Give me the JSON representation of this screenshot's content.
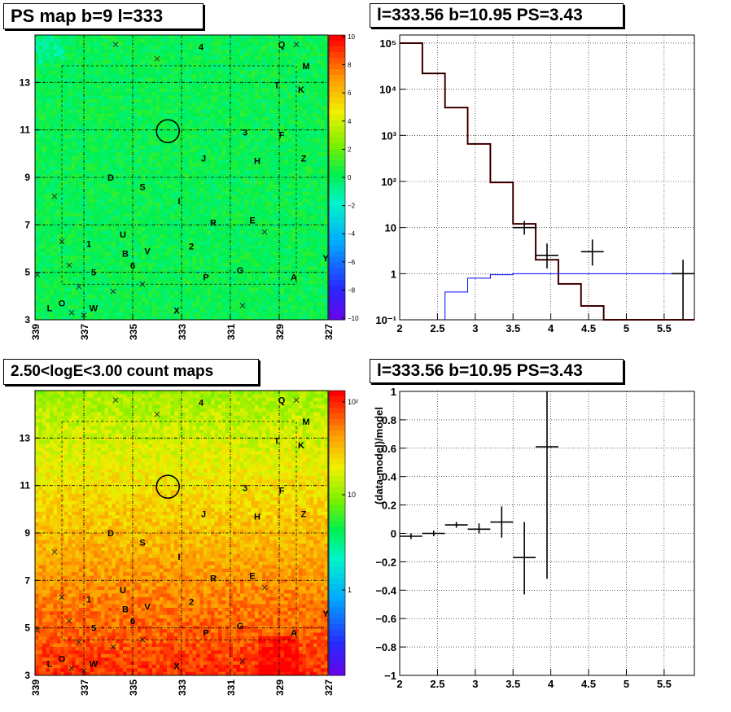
{
  "panels": {
    "ps_map": {
      "title": "PS map b=9 l=333"
    },
    "spectrum": {
      "title": "l=333.56 b=10.95 PS=3.43"
    },
    "count_map": {
      "title": "2.50<logE<3.00 count maps"
    },
    "residual": {
      "title": "l=333.56 b=10.95 PS=3.43"
    }
  },
  "map_axes": {
    "x_ticks": [
      "339",
      "337",
      "335",
      "333",
      "331",
      "329",
      "327"
    ],
    "y_ticks": [
      "5",
      "7",
      "9",
      "11",
      "13"
    ],
    "y_origin_label": "3",
    "ps_colorbar_ticks": [
      "10",
      "8",
      "6",
      "4",
      "2",
      "0",
      "−2",
      "−4",
      "−6",
      "−8",
      "−10"
    ],
    "count_colorbar_ticks": [
      "10²",
      "10",
      "1"
    ]
  },
  "source_labels": [
    {
      "t": "4",
      "l": 332.2,
      "b": 14.5
    },
    {
      "t": "Q",
      "l": 328.9,
      "b": 14.6
    },
    {
      "t": "M",
      "l": 327.9,
      "b": 13.7
    },
    {
      "t": "T",
      "l": 329.1,
      "b": 12.9
    },
    {
      "t": "K",
      "l": 328.1,
      "b": 12.7
    },
    {
      "t": "3",
      "l": 330.4,
      "b": 10.9
    },
    {
      "t": "F",
      "l": 328.9,
      "b": 10.8
    },
    {
      "t": "J",
      "l": 332.1,
      "b": 9.8
    },
    {
      "t": "H",
      "l": 329.9,
      "b": 9.7
    },
    {
      "t": "Z",
      "l": 328.0,
      "b": 9.8
    },
    {
      "t": "D",
      "l": 335.9,
      "b": 9.0
    },
    {
      "t": "S",
      "l": 334.6,
      "b": 8.6
    },
    {
      "t": "I",
      "l": 333.1,
      "b": 8.0
    },
    {
      "t": "R",
      "l": 331.7,
      "b": 7.1
    },
    {
      "t": "E",
      "l": 330.1,
      "b": 7.2
    },
    {
      "t": "U",
      "l": 335.4,
      "b": 6.6
    },
    {
      "t": "1",
      "l": 336.8,
      "b": 6.2
    },
    {
      "t": "2",
      "l": 332.6,
      "b": 6.1
    },
    {
      "t": "B",
      "l": 335.3,
      "b": 5.8
    },
    {
      "t": "V",
      "l": 334.4,
      "b": 5.9
    },
    {
      "t": "6",
      "l": 335.0,
      "b": 5.3
    },
    {
      "t": "5",
      "l": 336.6,
      "b": 5.0
    },
    {
      "t": "G",
      "l": 330.6,
      "b": 5.1
    },
    {
      "t": "P",
      "l": 332.0,
      "b": 4.8
    },
    {
      "t": "A",
      "l": 328.4,
      "b": 4.8
    },
    {
      "t": "Y",
      "l": 327.1,
      "b": 5.6
    },
    {
      "t": "L",
      "l": 338.4,
      "b": 3.5
    },
    {
      "t": "O",
      "l": 337.9,
      "b": 3.7
    },
    {
      "t": "W",
      "l": 336.6,
      "b": 3.5
    },
    {
      "t": "X",
      "l": 333.2,
      "b": 3.4
    }
  ],
  "cross_markers": [
    {
      "l": 335.7,
      "b": 14.6
    },
    {
      "l": 334.0,
      "b": 14.0
    },
    {
      "l": 328.3,
      "b": 14.6
    },
    {
      "l": 338.2,
      "b": 8.2
    },
    {
      "l": 337.9,
      "b": 6.3
    },
    {
      "l": 337.6,
      "b": 5.3
    },
    {
      "l": 337.2,
      "b": 4.4
    },
    {
      "l": 335.8,
      "b": 4.2
    },
    {
      "l": 334.6,
      "b": 4.5
    },
    {
      "l": 329.6,
      "b": 6.7
    },
    {
      "l": 330.5,
      "b": 3.6
    },
    {
      "l": 337.5,
      "b": 3.3
    },
    {
      "l": 337.0,
      "b": 3.2
    },
    {
      "l": 338.9,
      "b": 4.9
    }
  ],
  "circle_marker": {
    "l": 333.56,
    "b": 10.95
  },
  "chart_data": [
    {
      "type": "heatmap",
      "title": "PS map b=9 l=333",
      "xlim": [
        339,
        327
      ],
      "ylim": [
        3,
        15
      ],
      "zlim": [
        -10,
        10
      ],
      "colorbar_ticks": [
        -10,
        -8,
        -6,
        -4,
        -2,
        0,
        2,
        4,
        6,
        8,
        10
      ],
      "dominant_value": 0,
      "grid": true
    },
    {
      "type": "line",
      "title": "l=333.56 b=10.95 PS=3.43",
      "y_scale": "log",
      "xlim": [
        2,
        5.9
      ],
      "ylim": [
        0.1,
        150000
      ],
      "x_ticks": [
        2,
        2.5,
        3,
        3.5,
        4,
        4.5,
        5,
        5.5
      ],
      "y_tick_labels": [
        "10⁻¹",
        "1",
        "10",
        "10²",
        "10³",
        "10⁴",
        "10⁵"
      ],
      "grid": true,
      "series": [
        {
          "color": "#ff0000",
          "edges": [
            2,
            2.3,
            2.6,
            2.9,
            3.2,
            3.5,
            3.8,
            4.1,
            4.4,
            4.7,
            5.0,
            5.3,
            5.6,
            5.9
          ],
          "values": [
            100000,
            22000,
            4000,
            650,
            95,
            12,
            2,
            0.6,
            0.2,
            0.1,
            0.1,
            0.1,
            0.1
          ]
        },
        {
          "color": "#000000",
          "edges": [
            2,
            2.3,
            2.6,
            2.9,
            3.2,
            3.5,
            3.8,
            4.1,
            4.4,
            4.7,
            5.0,
            5.3,
            5.6,
            5.9
          ],
          "values": [
            100000,
            22000,
            4000,
            650,
            95,
            12,
            2,
            0.6,
            0.2,
            0.1,
            0.1,
            0.1,
            0.1
          ]
        },
        {
          "color": "#0000ff",
          "edges": [
            2.6,
            2.9,
            3.2,
            3.5,
            3.8,
            4.1,
            4.4,
            4.7,
            5.0,
            5.3,
            5.6,
            5.9
          ],
          "values": [
            0.4,
            0.8,
            0.95,
            1,
            1,
            1,
            1,
            1,
            1,
            1,
            1
          ]
        }
      ],
      "points": [
        {
          "x": 3.65,
          "xerr": 0.15,
          "y": 10,
          "ylo": 7,
          "yhi": 14
        },
        {
          "x": 3.95,
          "xerr": 0.15,
          "y": 2.5,
          "ylo": 1.3,
          "yhi": 4.5
        },
        {
          "x": 4.55,
          "xerr": 0.15,
          "y": 3,
          "ylo": 1.5,
          "yhi": 5.5
        },
        {
          "x": 5.75,
          "xerr": 0.15,
          "y": 1,
          "ylo": 0.1,
          "yhi": 2
        }
      ]
    },
    {
      "type": "heatmap",
      "title": "2.50<logE<3.00 count maps",
      "xlim": [
        339,
        327
      ],
      "ylim": [
        3,
        15
      ],
      "z_scale": "log",
      "colorbar_ticks": [
        1,
        10,
        100
      ],
      "gradient": "counts increase from top (~10) toward bottom (~100)",
      "grid": true
    },
    {
      "type": "scatter",
      "title": "l=333.56 b=10.95 PS=3.43",
      "ylabel": "(data-model)/model",
      "xlim": [
        2,
        5.9
      ],
      "ylim": [
        -1,
        1
      ],
      "x_ticks": [
        2,
        2.5,
        3,
        3.5,
        4,
        4.5,
        5,
        5.5
      ],
      "y_ticks": [
        -1,
        -0.8,
        -0.6,
        -0.4,
        -0.2,
        0,
        0.2,
        0.4,
        0.6,
        0.8,
        1
      ],
      "grid": true,
      "points": [
        {
          "x": 2.15,
          "xerr": 0.15,
          "y": -0.02,
          "ylo": -0.04,
          "yhi": 0.0
        },
        {
          "x": 2.45,
          "xerr": 0.15,
          "y": 0.0,
          "ylo": -0.02,
          "yhi": 0.02
        },
        {
          "x": 2.75,
          "xerr": 0.15,
          "y": 0.06,
          "ylo": 0.04,
          "yhi": 0.08
        },
        {
          "x": 3.05,
          "xerr": 0.15,
          "y": 0.03,
          "ylo": 0.0,
          "yhi": 0.07
        },
        {
          "x": 3.35,
          "xerr": 0.15,
          "y": 0.08,
          "ylo": -0.03,
          "yhi": 0.19
        },
        {
          "x": 3.65,
          "xerr": 0.15,
          "y": -0.17,
          "ylo": -0.43,
          "yhi": 0.08
        },
        {
          "x": 3.95,
          "xerr": 0.15,
          "y": 0.61,
          "ylo": -0.32,
          "yhi": 1.0
        }
      ]
    }
  ]
}
